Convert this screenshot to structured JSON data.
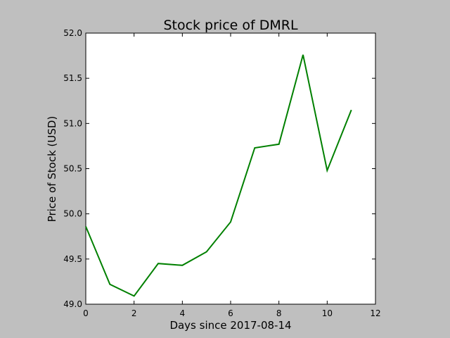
{
  "chart_data": {
    "type": "line",
    "title": "Stock price of DMRL",
    "xlabel": "Days since 2017-08-14",
    "ylabel": "Price of Stock (USD)",
    "xlim": [
      0,
      12
    ],
    "ylim": [
      49.0,
      52.0
    ],
    "x_ticks": [
      "0",
      "2",
      "4",
      "6",
      "8",
      "10",
      "12"
    ],
    "y_ticks": [
      "49.0",
      "49.5",
      "50.0",
      "50.5",
      "51.0",
      "51.5",
      "52.0"
    ],
    "grid": false,
    "legend": "none",
    "series": [
      {
        "color": "#008000",
        "x": [
          0,
          1,
          2,
          3,
          4,
          5,
          6,
          7,
          8,
          9,
          10,
          11
        ],
        "values": [
          49.86,
          49.22,
          49.09,
          49.45,
          49.43,
          49.58,
          49.91,
          50.73,
          50.77,
          51.76,
          50.48,
          51.15
        ]
      }
    ]
  },
  "colors": {
    "background": "#bfbfbf",
    "plot_area": "#ffffff",
    "axes": "#000000",
    "line": "#008000"
  }
}
